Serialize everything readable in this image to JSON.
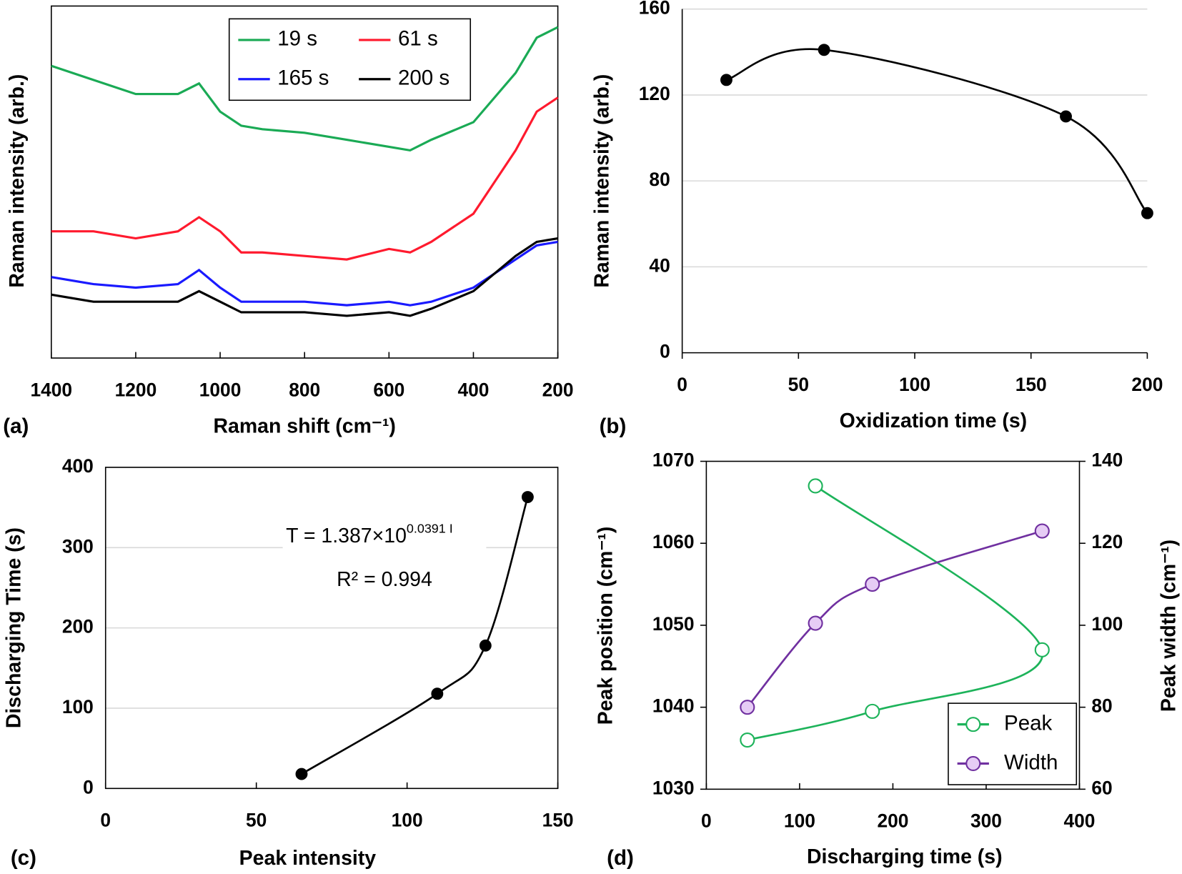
{
  "chart_data": [
    {
      "type": "line",
      "panel_label": "(a)",
      "x_label": "Raman shift (cm⁻¹)",
      "y_label": "Raman intensity (arb.)",
      "x": [
        1400,
        1300,
        1200,
        1100,
        1050,
        1000,
        950,
        900,
        800,
        700,
        600,
        550,
        500,
        400,
        300,
        250,
        200
      ],
      "series": [
        {
          "name": "19 s",
          "color": "#1aaa55",
          "values": [
            83,
            79,
            75,
            75,
            78,
            70,
            66,
            65,
            64,
            62,
            60,
            59,
            62,
            67,
            81,
            91,
            94
          ]
        },
        {
          "name": "61 s",
          "color": "#ff1a2e",
          "values": [
            36,
            36,
            34,
            36,
            40,
            36,
            30,
            30,
            29,
            28,
            31,
            30,
            33,
            41,
            59,
            70,
            74
          ]
        },
        {
          "name": "165 s",
          "color": "#1a1aff",
          "values": [
            23,
            21,
            20,
            21,
            25,
            20,
            16,
            16,
            16,
            15,
            16,
            15,
            16,
            20,
            28,
            32,
            33
          ]
        },
        {
          "name": "200 s",
          "color": "#000000",
          "values": [
            18,
            16,
            16,
            16,
            19,
            16,
            13,
            13,
            13,
            12,
            13,
            12,
            14,
            19,
            29,
            33,
            34
          ]
        }
      ],
      "xlim": [
        1400,
        200
      ],
      "xticks": [
        1400,
        1200,
        1000,
        800,
        600,
        400,
        200
      ],
      "ylim": [
        0,
        100
      ],
      "yticks": [],
      "frame": true,
      "grid": false,
      "legend": "upper center"
    },
    {
      "type": "line",
      "panel_label": "(b)",
      "x_label": "Oxidization time (s)",
      "y_label": "Raman intensity (arb.)",
      "x": [
        19,
        61,
        165,
        200
      ],
      "values": [
        127,
        141,
        110,
        65
      ],
      "color": "#000000",
      "smooth": true,
      "marker": "circle",
      "xlim": [
        0,
        200
      ],
      "xticks": [
        0,
        50,
        100,
        150,
        200
      ],
      "ylim": [
        0,
        160
      ],
      "yticks": [
        0,
        40,
        80,
        120,
        160
      ],
      "frame": false,
      "grid": true
    },
    {
      "type": "scatter",
      "panel_label": "(c)",
      "x_label": "Peak intensity",
      "y_label": "Discharging Time (s)",
      "x": [
        65,
        110,
        126,
        140
      ],
      "values": [
        18,
        118,
        178,
        363
      ],
      "color": "#000000",
      "trendline": true,
      "annotations": [
        {
          "text": "T = 1.387×10",
          "superscript": "0.0391 I"
        },
        {
          "text": "R² = 0.994"
        }
      ],
      "xlim": [
        0,
        150
      ],
      "xticks": [
        0,
        50,
        100,
        150
      ],
      "ylim": [
        0,
        400
      ],
      "yticks": [
        0,
        100,
        200,
        300,
        400
      ],
      "frame": true,
      "grid": true
    },
    {
      "type": "scatter",
      "panel_label": "(d)",
      "x_label": "Discharging time (s)",
      "y_label": "Peak position (cm⁻¹)",
      "y2_label": "Peak width (cm⁻¹)",
      "series": [
        {
          "name": "Peak",
          "color": "#1db35a",
          "fill": "#ffffff",
          "x": [
            44,
            178,
            360,
            117
          ],
          "values": [
            1036,
            1039.5,
            1047,
            1067
          ]
        },
        {
          "name": "Width",
          "color": "#7030a0",
          "fill": "#e6ccf5",
          "axis": "y2",
          "x": [
            44,
            117,
            178,
            360
          ],
          "values": [
            80,
            100.5,
            110,
            123
          ]
        }
      ],
      "trendline": true,
      "marker": "open circle",
      "xlim": [
        0,
        400
      ],
      "xticks": [
        0,
        100,
        200,
        300,
        400
      ],
      "ylim": [
        1030,
        1070
      ],
      "yticks": [
        1030,
        1040,
        1050,
        1060,
        1070
      ],
      "y2lim": [
        60,
        140
      ],
      "y2ticks": [
        60,
        80,
        100,
        120,
        140
      ],
      "frame": true,
      "grid": false,
      "legend": "lower right"
    }
  ]
}
